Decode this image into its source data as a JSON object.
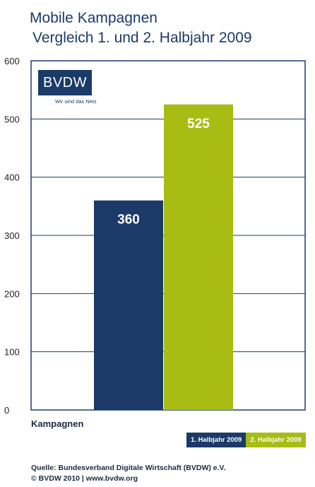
{
  "chart_data": {
    "type": "bar",
    "title": "Mobile Kampagnen",
    "subtitle": "Vergleich  1. und 2. Halbjahr 2009",
    "categories": [
      "Kampagnen"
    ],
    "series": [
      {
        "name": "1. Halbjahr 2009",
        "values": [
          360
        ],
        "color": "#1b3a68"
      },
      {
        "name": "2. Halbjahr 2009",
        "values": [
          525
        ],
        "color": "#a8bc14"
      }
    ],
    "ylim": [
      0,
      600
    ],
    "yticks": [
      0,
      100,
      200,
      300,
      400,
      500,
      600
    ],
    "grid": true,
    "legend_position": "bottom-right"
  },
  "logo": {
    "text": "BVDW",
    "tagline": "Wir sind das Netz"
  },
  "footer": {
    "source": "Quelle: Bundesverband Digitale Wirtschaft (BVDW) e.V.",
    "copyright": "© BVDW 2010 | www.bvdw.org"
  }
}
